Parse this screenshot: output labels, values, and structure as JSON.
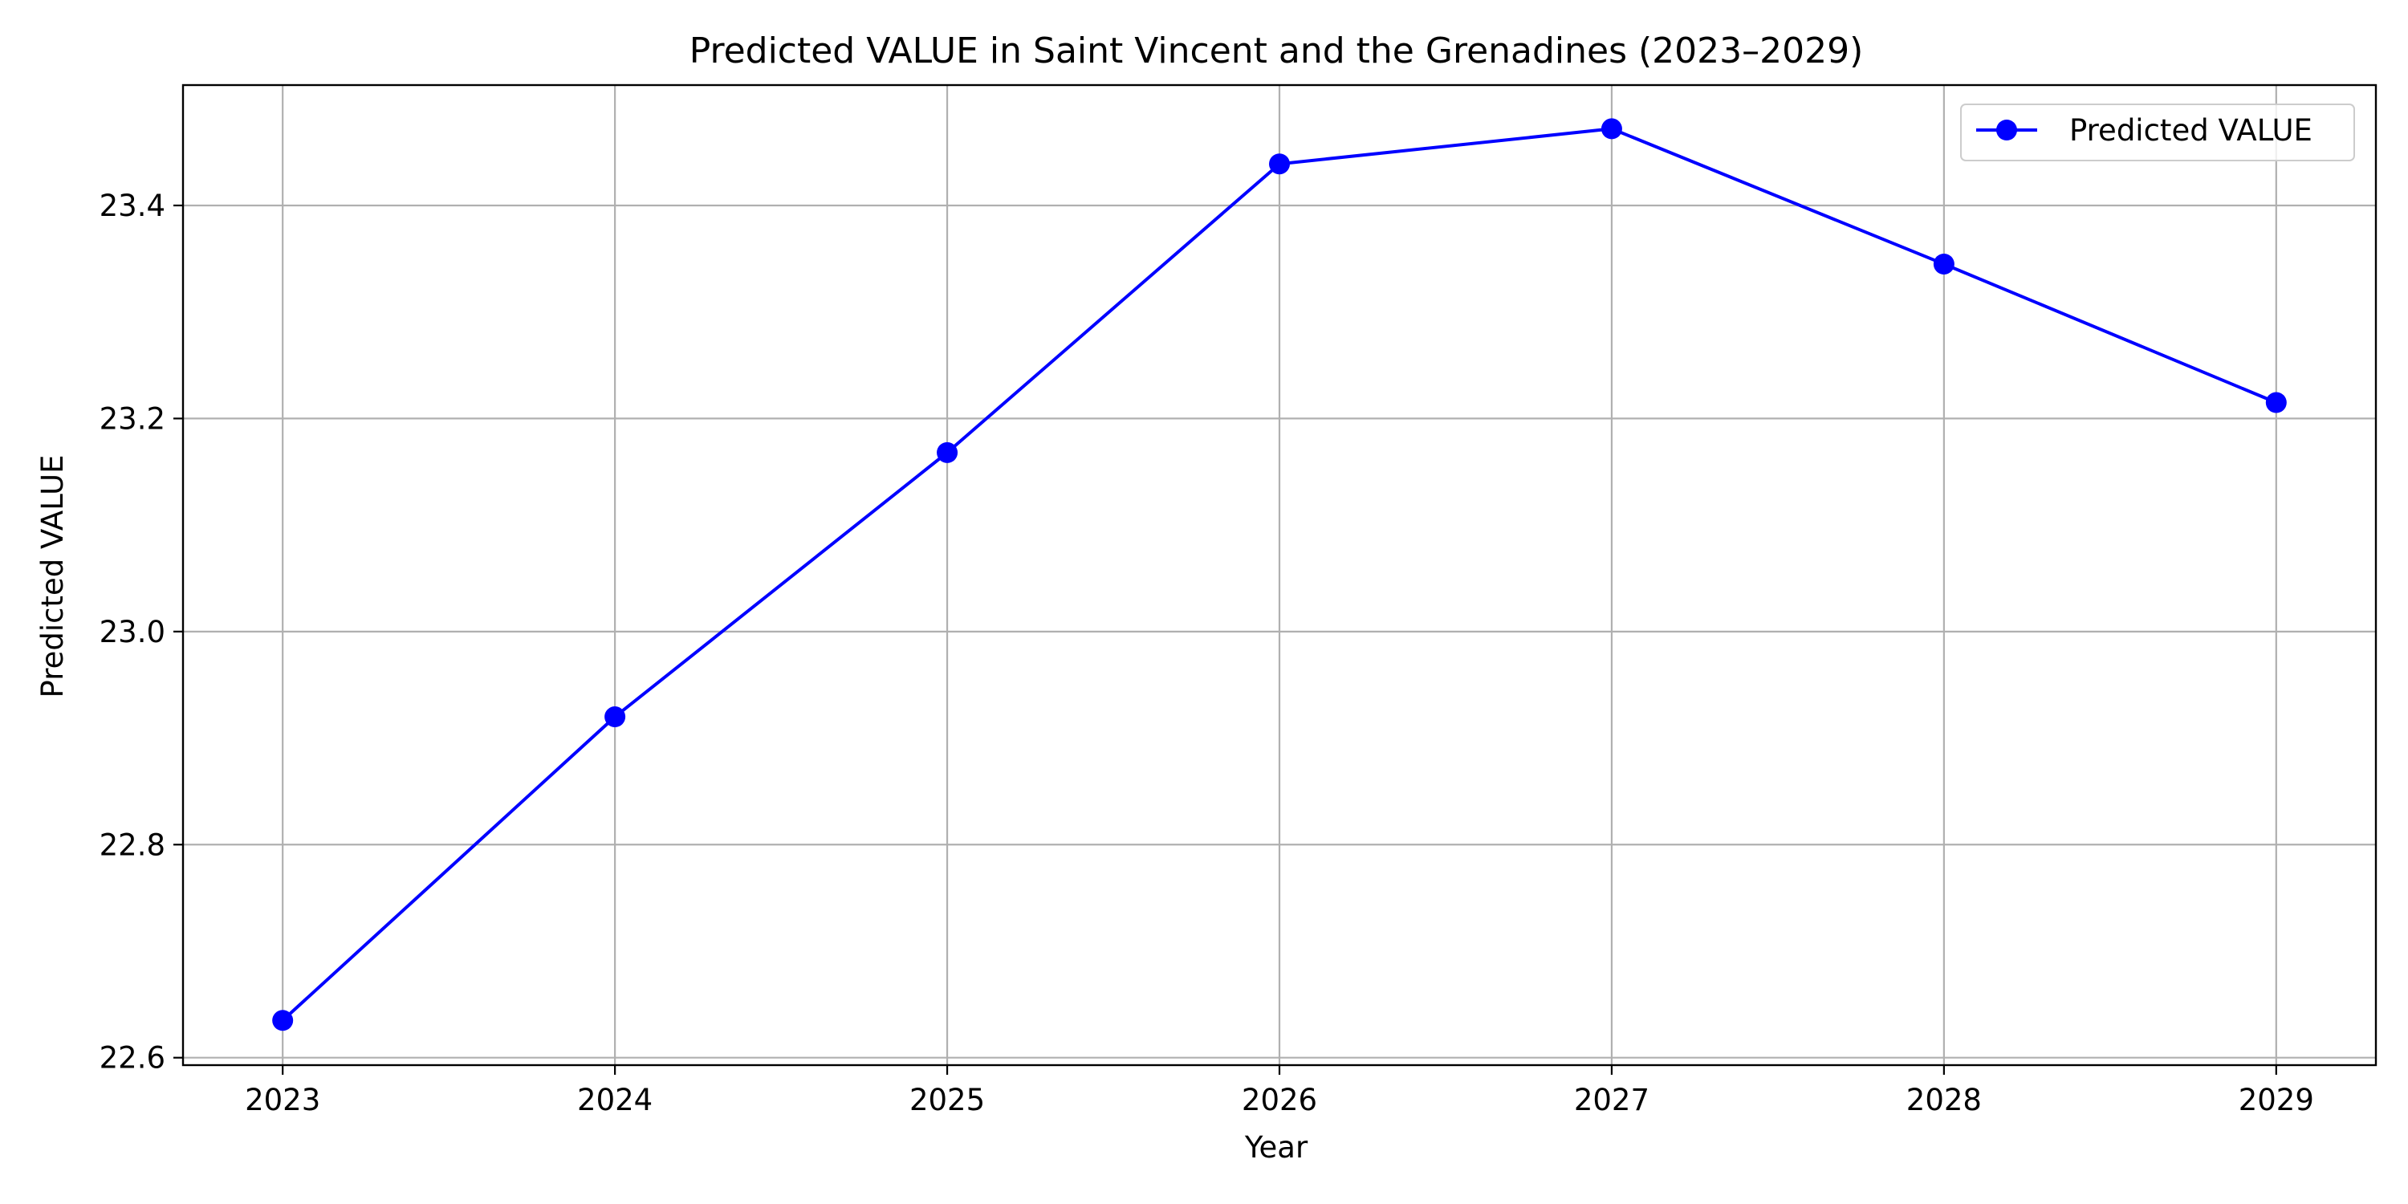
{
  "chart_data": {
    "type": "line",
    "title": "Predicted VALUE in Saint Vincent and the Grenadines (2023–2029)",
    "xlabel": "Year",
    "ylabel": "Predicted VALUE",
    "x": [
      2023,
      2024,
      2025,
      2026,
      2027,
      2028,
      2029
    ],
    "x_tick_labels": [
      "2023",
      "2024",
      "2025",
      "2026",
      "2027",
      "2028",
      "2029"
    ],
    "y_ticks": [
      22.6,
      22.8,
      23.0,
      23.2,
      23.4
    ],
    "y_tick_labels": [
      "22.6",
      "22.8",
      "23.0",
      "23.2",
      "23.4"
    ],
    "xlim": [
      2022.7,
      2029.3
    ],
    "ylim": [
      22.593,
      23.513
    ],
    "grid": true,
    "legend_position": "top-right",
    "series": [
      {
        "name": "Predicted VALUE",
        "color": "#0000ff",
        "marker": "circle",
        "values": [
          22.635,
          22.92,
          23.168,
          23.439,
          23.472,
          23.345,
          23.215
        ]
      }
    ]
  }
}
